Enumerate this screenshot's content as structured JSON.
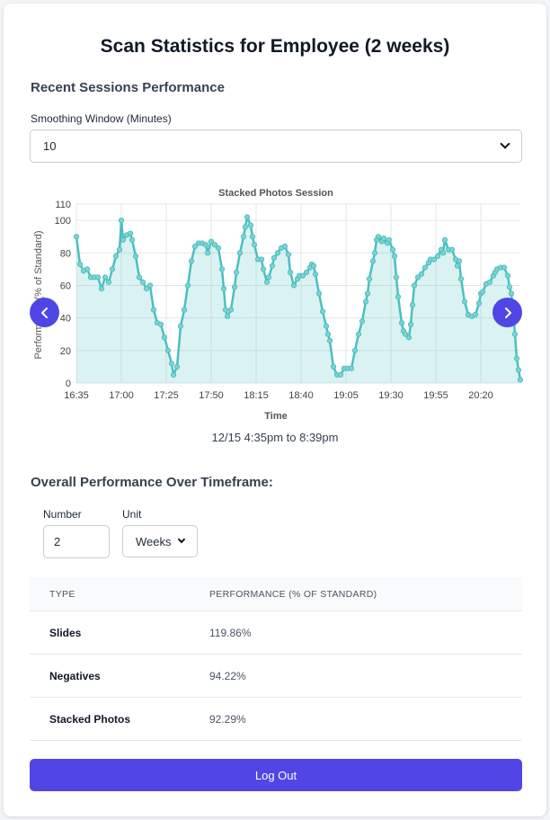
{
  "page": {
    "title": "Scan Statistics for Employee (2 weeks)"
  },
  "recent": {
    "section_title": "Recent Sessions Performance",
    "smoothing_label": "Smoothing Window (Minutes)",
    "smoothing_value": "10"
  },
  "chart_data": {
    "type": "area",
    "title": "Stacked Photos Session",
    "xlabel": "Time",
    "ylabel": "Performance (% of Standard)",
    "ylim": [
      0,
      110
    ],
    "yticks": [
      0,
      20,
      40,
      60,
      80,
      100,
      110
    ],
    "xtick_labels": [
      "16:35",
      "17:00",
      "17:25",
      "17:50",
      "18:15",
      "18:40",
      "19:05",
      "19:30",
      "19:55",
      "20:20"
    ],
    "x_range_minutes": [
      0,
      247
    ],
    "points": [
      [
        0,
        90
      ],
      [
        2,
        73
      ],
      [
        4,
        69
      ],
      [
        6,
        70
      ],
      [
        8,
        65
      ],
      [
        10,
        65
      ],
      [
        12,
        65
      ],
      [
        14,
        58
      ],
      [
        16,
        65
      ],
      [
        18,
        62
      ],
      [
        20,
        70
      ],
      [
        22,
        78
      ],
      [
        24,
        82
      ],
      [
        25,
        100
      ],
      [
        26,
        88
      ],
      [
        28,
        91
      ],
      [
        30,
        92
      ],
      [
        31,
        88
      ],
      [
        33,
        78
      ],
      [
        35,
        65
      ],
      [
        37,
        62
      ],
      [
        39,
        58
      ],
      [
        41,
        60
      ],
      [
        43,
        45
      ],
      [
        45,
        37
      ],
      [
        47,
        36
      ],
      [
        49,
        28
      ],
      [
        51,
        20
      ],
      [
        53,
        12
      ],
      [
        54,
        5
      ],
      [
        56,
        10
      ],
      [
        58,
        35
      ],
      [
        60,
        45
      ],
      [
        62,
        60
      ],
      [
        64,
        75
      ],
      [
        66,
        84
      ],
      [
        68,
        86
      ],
      [
        70,
        86
      ],
      [
        72,
        85
      ],
      [
        73,
        80
      ],
      [
        75,
        87
      ],
      [
        77,
        85
      ],
      [
        79,
        83
      ],
      [
        81,
        70
      ],
      [
        82,
        58
      ],
      [
        83,
        45
      ],
      [
        84,
        41
      ],
      [
        86,
        45
      ],
      [
        88,
        59
      ],
      [
        89,
        68
      ],
      [
        91,
        80
      ],
      [
        93,
        90
      ],
      [
        94,
        96
      ],
      [
        95,
        102
      ],
      [
        97,
        97
      ],
      [
        98,
        90
      ],
      [
        99,
        85
      ],
      [
        101,
        76
      ],
      [
        103,
        76
      ],
      [
        104,
        70
      ],
      [
        106,
        62
      ],
      [
        107,
        65
      ],
      [
        109,
        72
      ],
      [
        110,
        77
      ],
      [
        112,
        80
      ],
      [
        114,
        83
      ],
      [
        116,
        84
      ],
      [
        118,
        79
      ],
      [
        119,
        68
      ],
      [
        121,
        60
      ],
      [
        123,
        64
      ],
      [
        124,
        66
      ],
      [
        126,
        66
      ],
      [
        128,
        68
      ],
      [
        130,
        71
      ],
      [
        131,
        73
      ],
      [
        132,
        72
      ],
      [
        133,
        67
      ],
      [
        135,
        55
      ],
      [
        137,
        44
      ],
      [
        139,
        35
      ],
      [
        140,
        30
      ],
      [
        141,
        26
      ],
      [
        143,
        10
      ],
      [
        145,
        5
      ],
      [
        147,
        5
      ],
      [
        149,
        9
      ],
      [
        151,
        9
      ],
      [
        153,
        9
      ],
      [
        155,
        20
      ],
      [
        157,
        30
      ],
      [
        159,
        38
      ],
      [
        161,
        50
      ],
      [
        162,
        55
      ],
      [
        163,
        64
      ],
      [
        165,
        75
      ],
      [
        166,
        80
      ],
      [
        167,
        88
      ],
      [
        168,
        90
      ],
      [
        170,
        87
      ],
      [
        171,
        89
      ],
      [
        173,
        86
      ],
      [
        174,
        88
      ],
      [
        176,
        82
      ],
      [
        177,
        78
      ],
      [
        178,
        65
      ],
      [
        179,
        53
      ],
      [
        181,
        37
      ],
      [
        182,
        32
      ],
      [
        183,
        30
      ],
      [
        185,
        28
      ],
      [
        186,
        36
      ],
      [
        187,
        48
      ],
      [
        188,
        60
      ],
      [
        190,
        65
      ],
      [
        192,
        67
      ],
      [
        194,
        71
      ],
      [
        196,
        74
      ],
      [
        197,
        76
      ],
      [
        199,
        76
      ],
      [
        201,
        78
      ],
      [
        203,
        82
      ],
      [
        204,
        80
      ],
      [
        205,
        88
      ],
      [
        207,
        82
      ],
      [
        209,
        82
      ],
      [
        211,
        76
      ],
      [
        212,
        72
      ],
      [
        213,
        75
      ],
      [
        214,
        64
      ],
      [
        216,
        50
      ],
      [
        218,
        42
      ],
      [
        220,
        41
      ],
      [
        222,
        42
      ],
      [
        224,
        49
      ],
      [
        225,
        55
      ],
      [
        226,
        56
      ],
      [
        228,
        61
      ],
      [
        230,
        62
      ],
      [
        232,
        66
      ],
      [
        233,
        68
      ],
      [
        234,
        70
      ],
      [
        236,
        71
      ],
      [
        238,
        71
      ],
      [
        240,
        66
      ],
      [
        241,
        59
      ],
      [
        242,
        55
      ],
      [
        243,
        45
      ],
      [
        244,
        30
      ],
      [
        245,
        15
      ],
      [
        246,
        8
      ],
      [
        247,
        2
      ]
    ]
  },
  "chart_nav": {
    "prev_icon": "chevron-left-icon",
    "next_icon": "chevron-right-icon",
    "accent_color": "#4f46e5",
    "line_color": "#4bbfc0"
  },
  "session_range": "12/15 4:35pm to 8:39pm",
  "overall": {
    "section_title": "Overall Performance Over Timeframe:",
    "number_label": "Number",
    "number_value": "2",
    "unit_label": "Unit",
    "unit_value": "Weeks"
  },
  "table": {
    "headers": [
      "TYPE",
      "PERFORMANCE (% OF STANDARD)"
    ],
    "rows": [
      {
        "type": "Slides",
        "performance": "119.86%"
      },
      {
        "type": "Negatives",
        "performance": "94.22%"
      },
      {
        "type": "Stacked Photos",
        "performance": "92.29%"
      }
    ]
  },
  "footer": {
    "logout_label": "Log Out"
  }
}
